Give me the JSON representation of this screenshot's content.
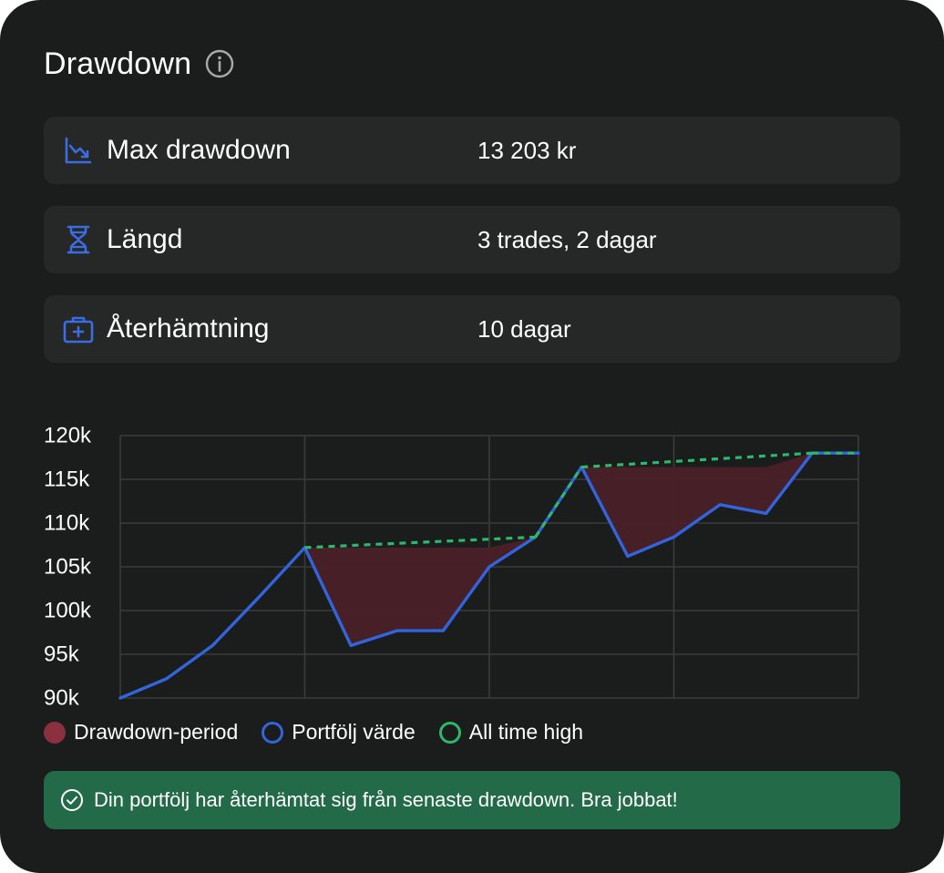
{
  "header": {
    "title": "Drawdown"
  },
  "stats": [
    {
      "label": "Max drawdown",
      "value": "13 203 kr",
      "icon": "trending-down-icon"
    },
    {
      "label": "Längd",
      "value": "3 trades, 2 dagar",
      "icon": "hourglass-icon"
    },
    {
      "label": "Återhämtning",
      "value": "10 dagar",
      "icon": "first-aid-kit-icon"
    }
  ],
  "colors": {
    "background": "#1b1c1c",
    "row_background": "#262727",
    "accent_blue": "#3264dc",
    "ath_green": "#2db86b",
    "drawdown_fill": "#4a2028",
    "drawdown_legend": "#8a3040",
    "banner": "#226a48"
  },
  "chart_data": {
    "type": "line",
    "title": "",
    "xlabel": "",
    "ylabel": "",
    "ylim": [
      90000,
      120000
    ],
    "ytick_labels": [
      "120k",
      "115k",
      "110k",
      "105k",
      "100k",
      "95k",
      "90k"
    ],
    "ytick_values": [
      120000,
      115000,
      110000,
      105000,
      100000,
      95000,
      90000
    ],
    "xlim": [
      0,
      16
    ],
    "x_grid_values": [
      4,
      8,
      12,
      16
    ],
    "grid": true,
    "legend_placement": "bottom-left",
    "x": [
      0,
      1,
      2,
      3,
      4,
      5,
      6,
      7,
      8,
      9,
      10,
      11,
      12,
      13,
      14,
      15,
      16
    ],
    "series": [
      {
        "name": "Portfölj värde",
        "values": [
          90000,
          92200,
          96000,
          101500,
          107200,
          96000,
          97700,
          97700,
          105000,
          108400,
          116400,
          106200,
          108400,
          112100,
          111100,
          118000,
          118000
        ],
        "color": "#3264dc"
      },
      {
        "name": "All time high",
        "values": [
          90000,
          92200,
          96000,
          101500,
          107200,
          107200,
          107200,
          107200,
          107200,
          108400,
          116400,
          116400,
          116400,
          116400,
          116400,
          118000,
          118000
        ],
        "color": "#2db86b"
      }
    ],
    "drawdown_periods": [
      [
        4,
        9
      ],
      [
        10,
        15
      ]
    ],
    "legend": [
      {
        "label": "Drawdown-period",
        "swatch": "drawdown"
      },
      {
        "label": "Portfölj värde",
        "swatch": "value"
      },
      {
        "label": "All time high",
        "swatch": "ath"
      }
    ]
  },
  "banner": {
    "text": "Din portfölj har återhämtat sig från senaste drawdown. Bra jobbat!",
    "icon": "check-circle-icon"
  }
}
